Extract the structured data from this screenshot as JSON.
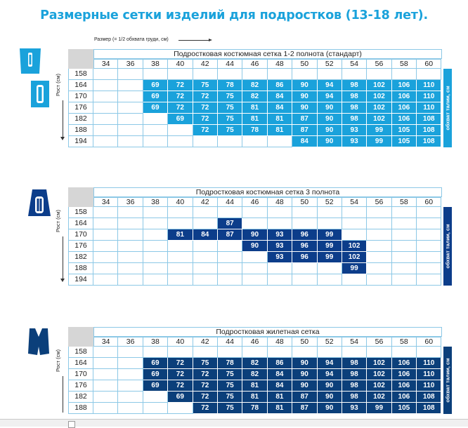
{
  "title": "Размерные сетки изделий для подростков (13-18 лет).",
  "size_note": "Размер (= 1/2 обхвата груди, см)",
  "rost_label": "Рост (см)",
  "waist_label": "обхват талии, см",
  "colors": {
    "light": "#1aa2db",
    "dark": "#0c3d8a",
    "vest": "#0b3f7a"
  },
  "columns": [
    "34",
    "36",
    "38",
    "40",
    "42",
    "44",
    "46",
    "48",
    "50",
    "52",
    "54",
    "56",
    "58",
    "60"
  ],
  "sections": [
    {
      "title": "Подростковая костюмная сетка 1-2 полнота (стандарт)",
      "color": "#1aa2db",
      "rows": [
        {
          "h": "158",
          "cells": [
            "",
            "",
            "",
            "",
            "",
            "",
            "",
            "",
            "",
            "",
            "",
            "",
            "",
            ""
          ]
        },
        {
          "h": "164",
          "cells": [
            "",
            "",
            "69",
            "72",
            "75",
            "78",
            "82",
            "86",
            "90",
            "94",
            "98",
            "102",
            "106",
            "110"
          ]
        },
        {
          "h": "170",
          "cells": [
            "",
            "",
            "69",
            "72",
            "72",
            "75",
            "82",
            "84",
            "90",
            "94",
            "98",
            "102",
            "106",
            "110"
          ]
        },
        {
          "h": "176",
          "cells": [
            "",
            "",
            "69",
            "72",
            "72",
            "75",
            "81",
            "84",
            "90",
            "90",
            "98",
            "102",
            "106",
            "110"
          ]
        },
        {
          "h": "182",
          "cells": [
            "",
            "",
            "",
            "69",
            "72",
            "75",
            "81",
            "81",
            "87",
            "90",
            "98",
            "102",
            "106",
            "108"
          ]
        },
        {
          "h": "188",
          "cells": [
            "",
            "",
            "",
            "",
            "72",
            "75",
            "78",
            "81",
            "87",
            "90",
            "93",
            "99",
            "105",
            "108"
          ]
        },
        {
          "h": "194",
          "cells": [
            "",
            "",
            "",
            "",
            "",
            "",
            "",
            "",
            "84",
            "90",
            "93",
            "99",
            "105",
            "108"
          ]
        }
      ]
    },
    {
      "title": "Подростковая костюмная сетка 3 полнота",
      "color": "#0c3d8a",
      "rows": [
        {
          "h": "158",
          "cells": [
            "",
            "",
            "",
            "",
            "",
            "",
            "",
            "",
            "",
            "",
            "",
            "",
            "",
            ""
          ]
        },
        {
          "h": "164",
          "cells": [
            "",
            "",
            "",
            "",
            "",
            "87",
            "",
            "",
            "",
            "",
            "",
            "",
            "",
            ""
          ]
        },
        {
          "h": "170",
          "cells": [
            "",
            "",
            "",
            "81",
            "84",
            "87",
            "90",
            "93",
            "96",
            "99",
            "",
            "",
            "",
            ""
          ]
        },
        {
          "h": "176",
          "cells": [
            "",
            "",
            "",
            "",
            "",
            "",
            "90",
            "93",
            "96",
            "99",
            "102",
            "",
            "",
            ""
          ]
        },
        {
          "h": "182",
          "cells": [
            "",
            "",
            "",
            "",
            "",
            "",
            "",
            "93",
            "96",
            "99",
            "102",
            "",
            "",
            ""
          ]
        },
        {
          "h": "188",
          "cells": [
            "",
            "",
            "",
            "",
            "",
            "",
            "",
            "",
            "",
            "",
            "99",
            "",
            "",
            ""
          ]
        },
        {
          "h": "194",
          "cells": [
            "",
            "",
            "",
            "",
            "",
            "",
            "",
            "",
            "",
            "",
            "",
            "",
            "",
            ""
          ]
        }
      ]
    },
    {
      "title": "Подростковая жилетная сетка",
      "color": "#0b3f7a",
      "rows": [
        {
          "h": "158",
          "cells": [
            "",
            "",
            "",
            "",
            "",
            "",
            "",
            "",
            "",
            "",
            "",
            "",
            "",
            ""
          ]
        },
        {
          "h": "164",
          "cells": [
            "",
            "",
            "69",
            "72",
            "75",
            "78",
            "82",
            "86",
            "90",
            "94",
            "98",
            "102",
            "106",
            "110"
          ]
        },
        {
          "h": "170",
          "cells": [
            "",
            "",
            "69",
            "72",
            "72",
            "75",
            "82",
            "84",
            "90",
            "94",
            "98",
            "102",
            "106",
            "110"
          ]
        },
        {
          "h": "176",
          "cells": [
            "",
            "",
            "69",
            "72",
            "72",
            "75",
            "81",
            "84",
            "90",
            "90",
            "98",
            "102",
            "106",
            "110"
          ]
        },
        {
          "h": "182",
          "cells": [
            "",
            "",
            "",
            "69",
            "72",
            "75",
            "81",
            "81",
            "87",
            "90",
            "98",
            "102",
            "106",
            "108"
          ]
        },
        {
          "h": "188",
          "cells": [
            "",
            "",
            "",
            "",
            "72",
            "75",
            "78",
            "81",
            "87",
            "90",
            "93",
            "99",
            "105",
            "108"
          ]
        }
      ]
    }
  ]
}
